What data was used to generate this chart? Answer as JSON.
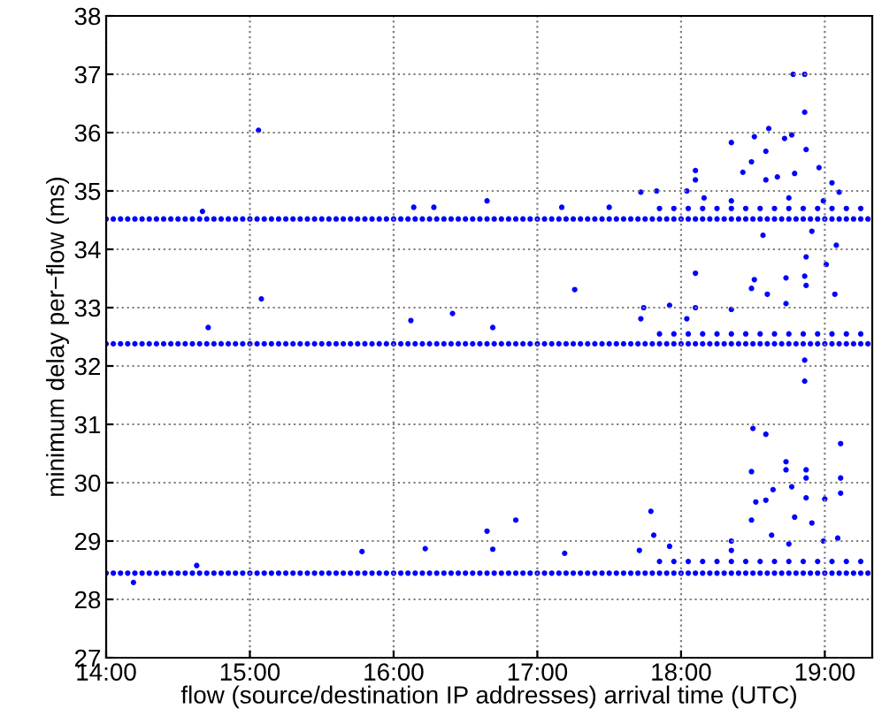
{
  "chart_data": {
    "type": "scatter",
    "xlabel": "flow (source/destination IP addresses) arrival time (UTC)",
    "ylabel": "minimum delay per−flow (ms)",
    "xlim": [
      14,
      19.33
    ],
    "ylim": [
      27,
      38
    ],
    "xticks": [
      {
        "value": 14,
        "label": "14:00"
      },
      {
        "value": 15,
        "label": "15:00"
      },
      {
        "value": 16,
        "label": "16:00"
      },
      {
        "value": 17,
        "label": "17:00"
      },
      {
        "value": 18,
        "label": "18:00"
      },
      {
        "value": 19,
        "label": "19:00"
      }
    ],
    "yticks": [
      27,
      28,
      29,
      30,
      31,
      32,
      33,
      34,
      35,
      36,
      37,
      38
    ],
    "grid": true,
    "legend": false,
    "marker": "circle",
    "x": [
      14.0,
      14.05,
      14.1,
      14.15,
      14.2,
      14.25,
      14.3,
      14.35,
      14.4,
      14.45,
      14.5,
      14.55,
      14.6,
      14.65,
      14.7,
      14.75,
      14.8,
      14.85,
      14.9,
      14.95,
      15.0,
      15.05,
      15.1,
      15.15,
      15.2,
      15.25,
      15.3,
      15.35,
      15.4,
      15.45,
      15.5,
      15.55,
      15.6,
      15.65,
      15.7,
      15.75,
      15.8,
      15.85,
      15.9,
      15.95,
      16.0,
      16.05,
      16.1,
      16.15,
      16.2,
      16.25,
      16.3,
      16.35,
      16.4,
      16.45,
      16.5,
      16.55,
      16.6,
      16.65,
      16.7,
      16.75,
      16.8,
      16.85,
      16.9,
      16.95,
      17.0,
      17.05,
      17.1,
      17.15,
      17.2,
      17.25,
      17.3,
      17.35,
      17.4,
      17.45,
      17.5,
      17.55,
      17.6,
      17.65,
      17.7,
      17.75,
      17.8,
      17.85,
      17.9,
      17.95,
      18.0,
      18.05,
      18.1,
      18.15,
      18.2,
      18.25,
      18.3,
      18.35,
      18.4,
      18.45,
      18.5,
      18.55,
      18.6,
      18.65,
      18.7,
      18.75,
      18.8,
      18.85,
      18.9,
      18.95,
      19.0,
      19.05,
      19.1,
      19.15,
      19.2,
      19.25,
      19.3
    ],
    "series": [
      {
        "color": "#0000ff",
        "values": [
          34.52,
          34.52,
          34.52,
          34.52,
          34.52,
          34.52,
          34.52,
          34.52,
          34.52,
          34.52,
          34.52,
          34.52,
          34.52,
          34.52,
          34.52,
          34.52,
          34.52,
          34.52,
          34.52,
          34.52,
          34.52,
          34.52,
          34.52,
          34.52,
          34.52,
          34.52,
          34.52,
          34.52,
          34.52,
          34.52,
          34.52,
          34.52,
          34.52,
          34.52,
          34.52,
          34.52,
          34.52,
          34.52,
          34.52,
          34.52,
          34.52,
          34.52,
          34.52,
          34.52,
          34.52,
          34.52,
          34.52,
          34.52,
          34.52,
          34.52,
          34.52,
          34.52,
          34.52,
          34.52,
          34.52,
          34.52,
          34.52,
          34.52,
          34.52,
          34.52,
          34.52,
          34.52,
          34.52,
          34.52,
          34.52,
          34.52,
          34.52,
          34.52,
          34.52,
          34.52,
          34.52,
          34.52,
          34.52,
          34.52,
          34.52,
          34.52,
          34.52,
          34.52,
          34.52,
          34.52,
          34.52,
          34.52,
          34.52,
          34.52,
          34.52,
          34.52,
          34.52,
          34.52,
          34.52,
          34.52,
          34.52,
          34.52,
          34.52,
          34.52,
          34.52,
          34.52,
          34.52,
          34.52,
          34.52,
          34.52,
          34.52,
          34.52,
          34.52,
          34.52,
          34.52,
          34.52,
          34.52
        ]
      },
      {
        "color": "#0000ff",
        "values": [
          32.38,
          32.38,
          32.38,
          32.38,
          32.38,
          32.38,
          32.38,
          32.38,
          32.38,
          32.38,
          32.38,
          32.38,
          32.38,
          32.38,
          32.38,
          32.38,
          32.38,
          32.38,
          32.38,
          32.38,
          32.38,
          32.38,
          32.38,
          32.38,
          32.38,
          32.38,
          32.38,
          32.38,
          32.38,
          32.38,
          32.38,
          32.38,
          32.38,
          32.38,
          32.38,
          32.38,
          32.38,
          32.38,
          32.38,
          32.38,
          32.38,
          32.38,
          32.38,
          32.38,
          32.38,
          32.38,
          32.38,
          32.38,
          32.38,
          32.38,
          32.38,
          32.38,
          32.38,
          32.38,
          32.38,
          32.38,
          32.38,
          32.38,
          32.38,
          32.38,
          32.38,
          32.38,
          32.38,
          32.38,
          32.38,
          32.38,
          32.38,
          32.38,
          32.38,
          32.38,
          32.38,
          32.38,
          32.38,
          32.38,
          32.38,
          32.38,
          32.38,
          32.38,
          32.38,
          32.38,
          32.38,
          32.38,
          32.38,
          32.38,
          32.38,
          32.38,
          32.38,
          32.38,
          32.38,
          32.38,
          32.38,
          32.38,
          32.38,
          32.38,
          32.38,
          32.38,
          32.38,
          32.38,
          32.38,
          32.38,
          32.38,
          32.38,
          32.38,
          32.38,
          32.38,
          32.38,
          32.38
        ]
      },
      {
        "color": "#0000ff",
        "values": [
          28.45,
          28.45,
          28.45,
          28.45,
          28.45,
          28.45,
          28.45,
          28.45,
          28.45,
          28.45,
          28.45,
          28.45,
          28.45,
          28.45,
          28.45,
          28.45,
          28.45,
          28.45,
          28.45,
          28.45,
          28.45,
          28.45,
          28.45,
          28.45,
          28.45,
          28.45,
          28.45,
          28.45,
          28.45,
          28.45,
          28.45,
          28.45,
          28.45,
          28.45,
          28.45,
          28.45,
          28.45,
          28.45,
          28.45,
          28.45,
          28.45,
          28.45,
          28.45,
          28.45,
          28.45,
          28.45,
          28.45,
          28.45,
          28.45,
          28.45,
          28.45,
          28.45,
          28.45,
          28.45,
          28.45,
          28.45,
          28.45,
          28.45,
          28.45,
          28.45,
          28.45,
          28.45,
          28.45,
          28.45,
          28.45,
          28.45,
          28.45,
          28.45,
          28.45,
          28.45,
          28.45,
          28.45,
          28.45,
          28.45,
          28.45,
          28.45,
          28.45,
          28.45,
          28.45,
          28.45,
          28.45,
          28.45,
          28.45,
          28.45,
          28.45,
          28.45,
          28.45,
          28.45,
          28.45,
          28.45,
          28.45,
          28.45,
          28.45,
          28.45,
          28.45,
          28.45,
          28.45,
          28.45,
          28.45,
          28.45,
          28.45,
          28.45,
          28.45,
          28.45,
          28.45,
          28.45,
          28.45
        ]
      },
      {
        "color": "#0000ff",
        "x": [
          15.06,
          18.78,
          18.86,
          18.86,
          18.61,
          18.51,
          18.35,
          18.72,
          18.77,
          18.59,
          18.49,
          18.87,
          18.96,
          18.1,
          18.1,
          18.04,
          18.43,
          18.59,
          18.67,
          18.79,
          19.05,
          19.1,
          17.72,
          17.83,
          16.65,
          16.14,
          18.16,
          18.35,
          18.75,
          18.99,
          17.17,
          17.5,
          14.67,
          16.28,
          17.85,
          17.95,
          18.05,
          18.15,
          18.25,
          18.35,
          18.45,
          18.55,
          18.65,
          18.75,
          18.85,
          18.95,
          19.05,
          19.15,
          19.25
        ],
        "values": [
          36.04,
          37.0,
          37.0,
          36.35,
          36.07,
          35.93,
          35.83,
          35.9,
          35.96,
          35.68,
          35.5,
          35.71,
          35.4,
          35.35,
          35.19,
          35.0,
          35.32,
          35.19,
          35.24,
          35.3,
          35.14,
          34.98,
          34.98,
          35.0,
          34.83,
          34.72,
          34.88,
          34.83,
          34.88,
          34.83,
          34.72,
          34.72,
          34.65,
          34.72,
          34.7,
          34.7,
          34.7,
          34.7,
          34.7,
          34.7,
          34.7,
          34.7,
          34.7,
          34.7,
          34.7,
          34.7,
          34.7,
          34.7,
          34.7
        ]
      },
      {
        "color": "#0000ff",
        "x": [
          18.57,
          18.91,
          19.08,
          18.87,
          19.01,
          18.86,
          18.73,
          18.1,
          18.51,
          18.49,
          18.6,
          18.87,
          19.07,
          17.26,
          15.08,
          16.41,
          17.92,
          17.74,
          18.1,
          18.35,
          18.73,
          16.12,
          14.71,
          16.69,
          17.72,
          18.04,
          17.85,
          17.95,
          18.05,
          18.15,
          18.25,
          18.35,
          18.45,
          18.55,
          18.65,
          18.75,
          18.85,
          18.95,
          19.05,
          19.15,
          19.25
        ],
        "values": [
          34.24,
          34.31,
          34.07,
          33.87,
          33.74,
          33.54,
          33.51,
          33.59,
          33.48,
          33.33,
          33.23,
          33.38,
          33.23,
          33.31,
          33.15,
          32.9,
          33.04,
          33.0,
          33.0,
          32.97,
          33.07,
          32.78,
          32.66,
          32.66,
          32.81,
          32.81,
          32.55,
          32.55,
          32.55,
          32.55,
          32.55,
          32.55,
          32.55,
          32.55,
          32.55,
          32.55,
          32.55,
          32.55,
          32.55,
          32.55,
          32.55
        ]
      },
      {
        "color": "#0000ff",
        "x": [
          18.86,
          18.86,
          19.11,
          18.5,
          18.59,
          18.73,
          18.73,
          18.87,
          18.87,
          19.11,
          18.49,
          18.64,
          18.77,
          19.0,
          18.52,
          18.59,
          18.87,
          17.79,
          16.85,
          18.79,
          18.49,
          18.91,
          19.09,
          16.65,
          17.81,
          19.11,
          17.71,
          17.92,
          17.19,
          16.22,
          15.78,
          18.35,
          18.63,
          18.99,
          16.69,
          14.63,
          14.19,
          18.35,
          18.75,
          17.85,
          17.95,
          18.05,
          18.15,
          18.25,
          18.35,
          18.45,
          18.55,
          18.65,
          18.75,
          18.85,
          18.95,
          19.05,
          19.15,
          19.25
        ],
        "values": [
          32.1,
          31.74,
          30.67,
          30.93,
          30.83,
          30.36,
          30.22,
          30.22,
          30.08,
          30.08,
          30.19,
          29.88,
          29.93,
          29.72,
          29.67,
          29.7,
          29.74,
          29.51,
          29.36,
          29.41,
          29.36,
          29.31,
          29.05,
          29.17,
          29.1,
          29.82,
          28.84,
          28.91,
          28.79,
          28.87,
          28.82,
          29.0,
          29.1,
          29.0,
          28.86,
          28.58,
          28.29,
          28.84,
          28.95,
          28.65,
          28.65,
          28.65,
          28.65,
          28.65,
          28.65,
          28.65,
          28.65,
          28.65,
          28.65,
          28.65,
          28.65,
          28.65,
          28.65,
          28.65
        ]
      }
    ]
  }
}
